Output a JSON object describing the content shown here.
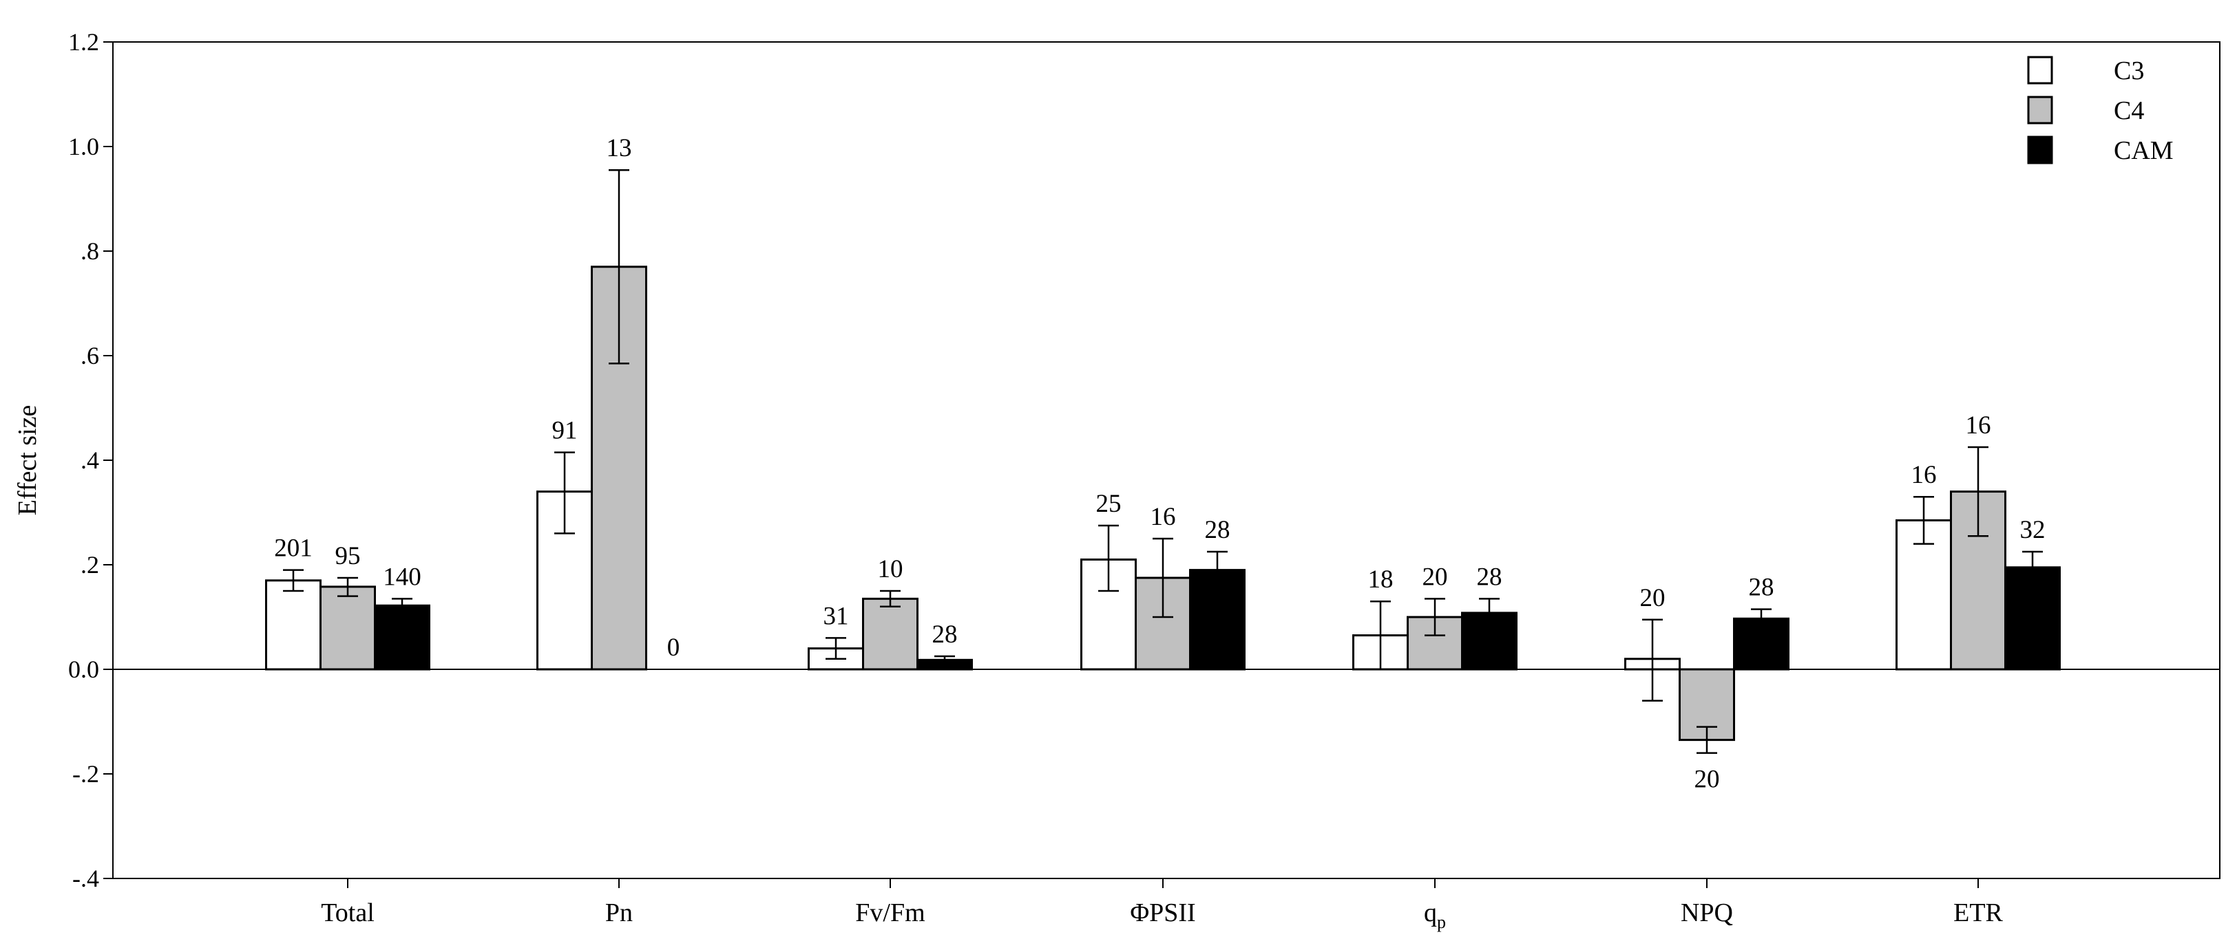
{
  "chart_data": {
    "type": "bar",
    "title": "",
    "xlabel": "",
    "ylabel": "Effect size",
    "ylim": [
      -0.4,
      1.2
    ],
    "yticks": [
      -0.4,
      -0.2,
      0.0,
      0.2,
      0.4,
      0.6,
      0.8,
      1.0,
      1.2
    ],
    "ytick_labels": [
      "-.4",
      "-.2",
      "0.0",
      ".2",
      ".4",
      ".6",
      ".8",
      "1.0",
      "1.2"
    ],
    "categories": [
      "Total",
      "Pn",
      "Fv/Fm",
      "ΦPSII",
      "qp",
      "NPQ",
      "ETR"
    ],
    "category_labels": [
      {
        "main": "Total",
        "sub": ""
      },
      {
        "main": "Pn",
        "sub": ""
      },
      {
        "main": "Fv/Fm",
        "sub": ""
      },
      {
        "main": "ΦPSII",
        "sub": ""
      },
      {
        "main": "q",
        "sub": "p"
      },
      {
        "main": "NPQ",
        "sub": ""
      },
      {
        "main": "ETR",
        "sub": ""
      }
    ],
    "series": [
      {
        "name": "C3",
        "color": "#ffffff",
        "values": [
          0.17,
          0.34,
          0.04,
          0.21,
          0.065,
          0.02,
          0.285
        ],
        "err_low": [
          0.15,
          0.26,
          0.02,
          0.15,
          0.0,
          -0.06,
          0.24
        ],
        "err_high": [
          0.19,
          0.415,
          0.06,
          0.275,
          0.13,
          0.095,
          0.33
        ],
        "n": [
          "201",
          "91",
          "31",
          "25",
          "18",
          "20",
          "16"
        ]
      },
      {
        "name": "C4",
        "color": "#c0c0c0",
        "values": [
          0.158,
          0.77,
          0.135,
          0.175,
          0.1,
          -0.135,
          0.34
        ],
        "err_low": [
          0.14,
          0.585,
          0.12,
          0.1,
          0.065,
          -0.16,
          0.255
        ],
        "err_high": [
          0.175,
          0.955,
          0.15,
          0.25,
          0.135,
          -0.11,
          0.425
        ],
        "n": [
          "95",
          "13",
          "10",
          "16",
          "20",
          "20",
          "16"
        ]
      },
      {
        "name": "CAM",
        "color": "#000000",
        "values": [
          0.122,
          null,
          0.018,
          0.19,
          0.108,
          0.097,
          0.195
        ],
        "err_low": [
          0.11,
          null,
          0.01,
          0.155,
          0.085,
          0.08,
          0.165
        ],
        "err_high": [
          0.135,
          null,
          0.025,
          0.225,
          0.135,
          0.115,
          0.225
        ],
        "n": [
          "140",
          "0",
          "28",
          "28",
          "28",
          "28",
          "32"
        ]
      }
    ],
    "grid": false,
    "legend_position": "top-right"
  }
}
